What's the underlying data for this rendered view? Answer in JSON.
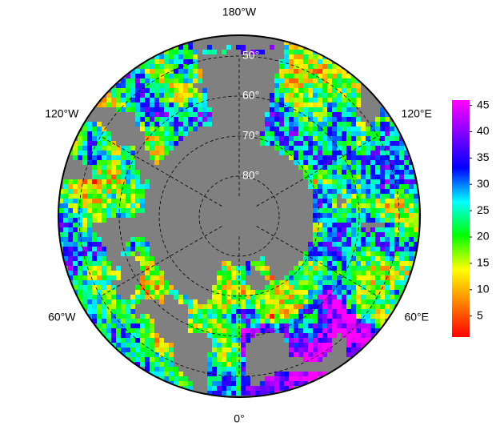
{
  "map": {
    "meridian_labels": [
      {
        "value": 180,
        "label": "180°W"
      },
      {
        "value": -120,
        "label": "120°W"
      },
      {
        "value": 120,
        "label": "120°E"
      },
      {
        "value": -60,
        "label": "60°W"
      },
      {
        "value": 60,
        "label": "60°E"
      },
      {
        "value": 0,
        "label": "0°"
      }
    ],
    "parallel_labels": [
      {
        "value": 50,
        "label": "50°"
      },
      {
        "value": 60,
        "label": "60°"
      },
      {
        "value": 70,
        "label": "70°"
      },
      {
        "value": 80,
        "label": "80°"
      }
    ],
    "colorbar": {
      "lim": [
        1,
        46
      ],
      "ticks": [
        5,
        10,
        15,
        20,
        25,
        30,
        35,
        40,
        45
      ],
      "colormap": [
        "#ff0000",
        "#ff8000",
        "#ffff00",
        "#00ff00",
        "#00ffff",
        "#0000ff",
        "#8000ff",
        "#ff00ff"
      ]
    }
  }
}
